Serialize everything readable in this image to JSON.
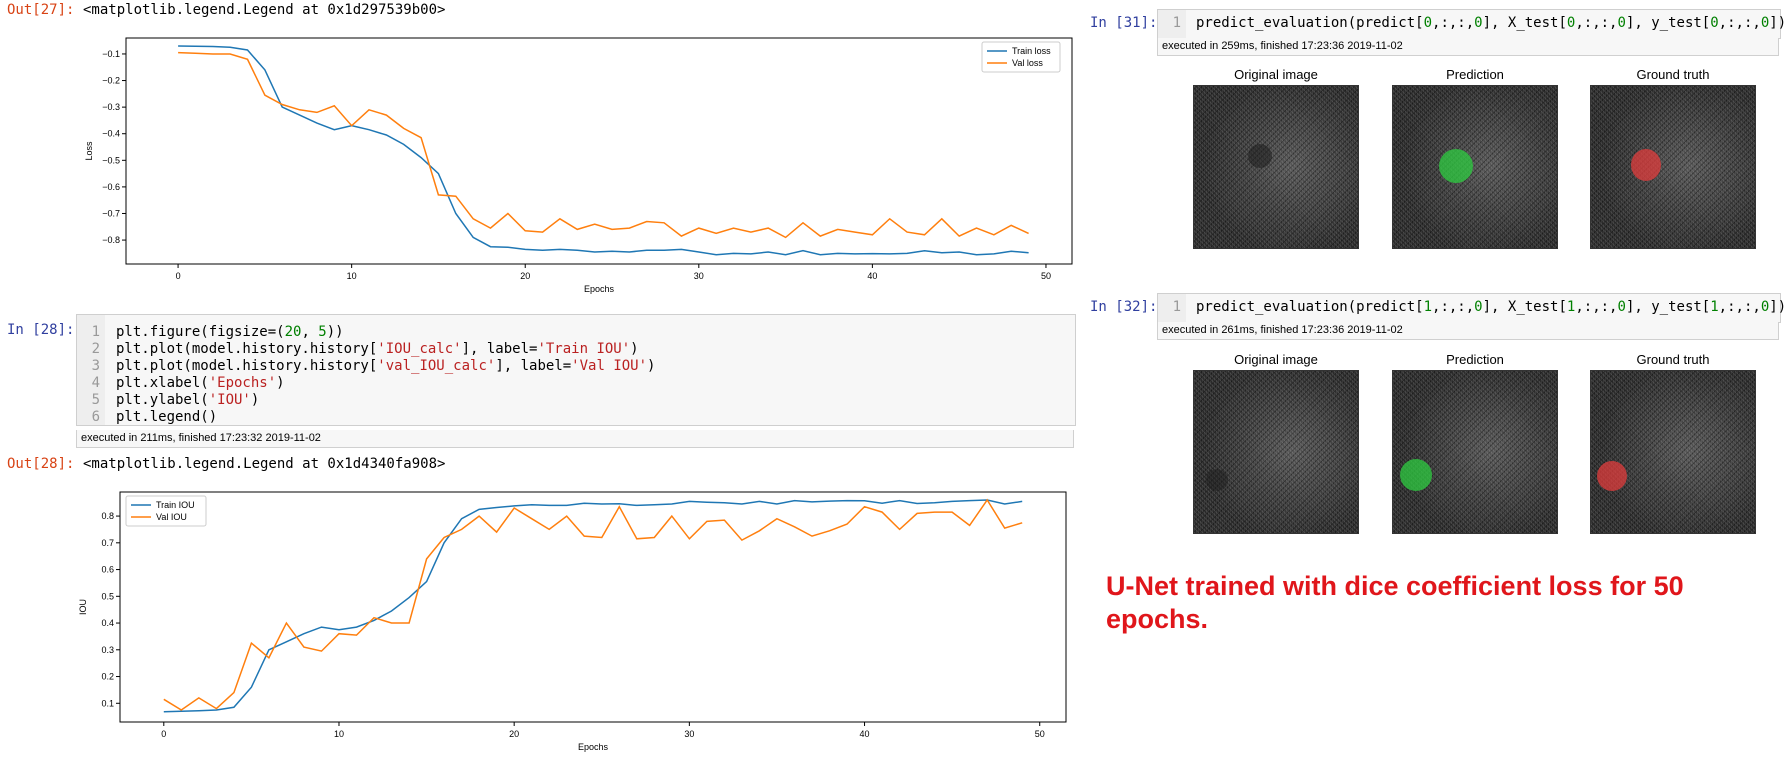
{
  "out27": {
    "prompt": "Out[27]:",
    "text": "<matplotlib.legend.Legend at 0x1d297539b00>"
  },
  "in28": {
    "prompt": "In [28]:",
    "line_numbers": [
      "1",
      "2",
      "3",
      "4",
      "5",
      "6"
    ],
    "exec": "executed in 211ms, finished 17:23:32 2019-11-02"
  },
  "out28": {
    "prompt": "Out[28]:",
    "text": "<matplotlib.legend.Legend at 0x1d4340fa908>"
  },
  "in31": {
    "prompt": "In [31]:",
    "line_number": "1",
    "exec": "executed in 259ms, finished 17:23:36 2019-11-02",
    "titles": [
      "Original image",
      "Prediction",
      "Ground truth"
    ]
  },
  "in32": {
    "prompt": "In [32]:",
    "line_number": "1",
    "exec": "executed in 261ms, finished 17:23:36 2019-11-02",
    "titles": [
      "Original image",
      "Prediction",
      "Ground truth"
    ]
  },
  "caption": {
    "line1": "U-Net trained with dice coefficient loss for 50",
    "line2": "epochs."
  },
  "colors": {
    "train": "#1f77b4",
    "val": "#ff7f0e",
    "caption": "#e0161b",
    "prediction": "#2ecc40",
    "truth": "#e03c3c"
  },
  "chart_data": [
    {
      "type": "line",
      "xlabel": "Epochs",
      "ylabel": "Loss",
      "xlim": [
        -3,
        51.5
      ],
      "ylim": [
        -0.89,
        -0.04
      ],
      "xticks": [
        0,
        10,
        20,
        30,
        40,
        50
      ],
      "yticks": [
        -0.1,
        -0.2,
        -0.3,
        -0.4,
        -0.5,
        -0.6,
        -0.7,
        -0.8
      ],
      "ytick_labels": [
        "−0.1",
        "−0.2",
        "−0.3",
        "−0.4",
        "−0.5",
        "−0.6",
        "−0.7",
        "−0.8"
      ],
      "legend": "top-right",
      "series": [
        {
          "name": "Train loss",
          "color": "#1f77b4",
          "values": [
            -0.07,
            -0.071,
            -0.072,
            -0.075,
            -0.085,
            -0.16,
            -0.3,
            -0.33,
            -0.36,
            -0.385,
            -0.37,
            -0.385,
            -0.405,
            -0.44,
            -0.49,
            -0.55,
            -0.7,
            -0.79,
            -0.825,
            -0.827,
            -0.835,
            -0.838,
            -0.835,
            -0.838,
            -0.845,
            -0.842,
            -0.845,
            -0.838,
            -0.838,
            -0.835,
            -0.845,
            -0.855,
            -0.85,
            -0.852,
            -0.845,
            -0.855,
            -0.84,
            -0.855,
            -0.85,
            -0.852,
            -0.851,
            -0.852,
            -0.85,
            -0.84,
            -0.848,
            -0.845,
            -0.855,
            -0.852,
            -0.842,
            -0.848
          ]
        },
        {
          "name": "Val loss",
          "color": "#ff7f0e",
          "values": [
            -0.095,
            -0.097,
            -0.1,
            -0.1,
            -0.12,
            -0.255,
            -0.29,
            -0.31,
            -0.32,
            -0.295,
            -0.37,
            -0.31,
            -0.33,
            -0.38,
            -0.415,
            -0.63,
            -0.635,
            -0.72,
            -0.755,
            -0.7,
            -0.765,
            -0.77,
            -0.72,
            -0.76,
            -0.74,
            -0.76,
            -0.755,
            -0.73,
            -0.735,
            -0.785,
            -0.755,
            -0.775,
            -0.755,
            -0.77,
            -0.755,
            -0.79,
            -0.735,
            -0.785,
            -0.76,
            -0.77,
            -0.78,
            -0.72,
            -0.77,
            -0.78,
            -0.72,
            -0.785,
            -0.755,
            -0.78,
            -0.745,
            -0.775
          ]
        }
      ]
    },
    {
      "type": "line",
      "xlabel": "Epochs",
      "ylabel": "IOU",
      "xlim": [
        -2.5,
        51.5
      ],
      "ylim": [
        0.03,
        0.89
      ],
      "xticks": [
        0,
        10,
        20,
        30,
        40,
        50
      ],
      "yticks": [
        0.1,
        0.2,
        0.3,
        0.4,
        0.5,
        0.6,
        0.7,
        0.8
      ],
      "ytick_labels": [
        "0.1",
        "0.2",
        "0.3",
        "0.4",
        "0.5",
        "0.6",
        "0.7",
        "0.8"
      ],
      "legend": "top-left",
      "series": [
        {
          "name": "Train IOU",
          "color": "#1f77b4",
          "values": [
            0.068,
            0.07,
            0.072,
            0.075,
            0.085,
            0.16,
            0.3,
            0.33,
            0.36,
            0.385,
            0.375,
            0.385,
            0.41,
            0.445,
            0.495,
            0.555,
            0.7,
            0.79,
            0.825,
            0.832,
            0.838,
            0.842,
            0.84,
            0.84,
            0.848,
            0.845,
            0.846,
            0.84,
            0.842,
            0.845,
            0.855,
            0.852,
            0.85,
            0.845,
            0.855,
            0.845,
            0.858,
            0.853,
            0.856,
            0.858,
            0.857,
            0.848,
            0.858,
            0.847,
            0.85,
            0.855,
            0.858,
            0.86,
            0.845,
            0.855
          ]
        },
        {
          "name": "Val IOU",
          "color": "#ff7f0e",
          "values": [
            0.115,
            0.075,
            0.12,
            0.08,
            0.14,
            0.325,
            0.27,
            0.4,
            0.31,
            0.295,
            0.36,
            0.355,
            0.42,
            0.4,
            0.4,
            0.64,
            0.72,
            0.75,
            0.8,
            0.74,
            0.83,
            0.79,
            0.75,
            0.8,
            0.725,
            0.72,
            0.835,
            0.715,
            0.72,
            0.8,
            0.715,
            0.78,
            0.785,
            0.71,
            0.745,
            0.79,
            0.76,
            0.725,
            0.745,
            0.77,
            0.835,
            0.815,
            0.75,
            0.81,
            0.815,
            0.815,
            0.765,
            0.86,
            0.755,
            0.775
          ]
        }
      ]
    }
  ]
}
